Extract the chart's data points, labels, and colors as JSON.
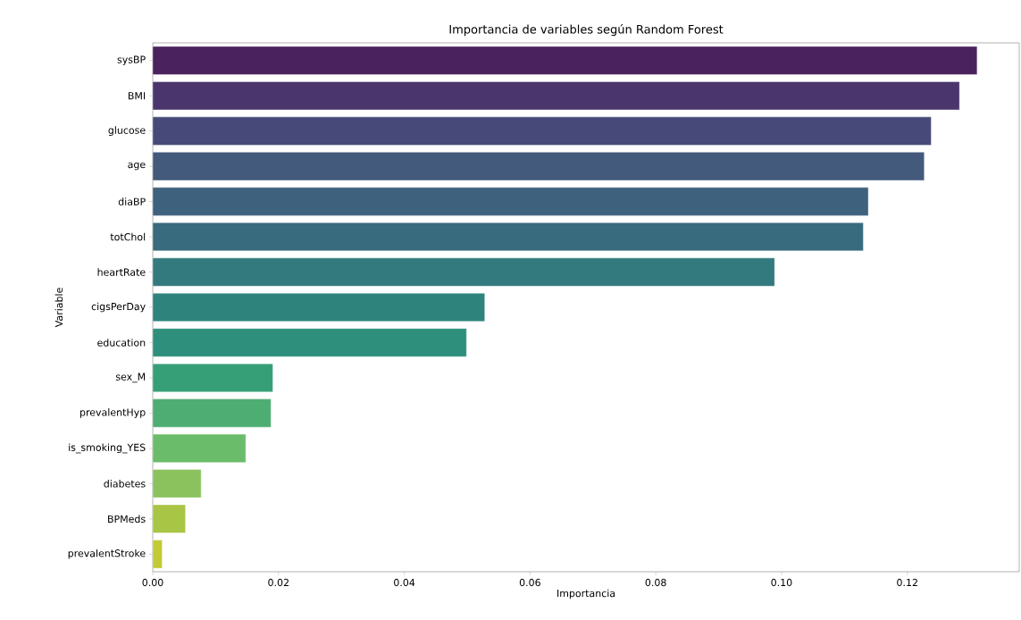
{
  "chart_data": {
    "type": "bar",
    "orientation": "horizontal",
    "title": "Importancia de variables según Random Forest",
    "xlabel": "Importancia",
    "ylabel": "Variable",
    "categories": [
      "sysBP",
      "BMI",
      "glucose",
      "age",
      "diaBP",
      "totChol",
      "heartRate",
      "cigsPerDay",
      "education",
      "sex_M",
      "prevalentHyp",
      "is_smoking_YES",
      "diabetes",
      "BPMeds",
      "prevalentStroke"
    ],
    "values": [
      0.1311,
      0.1283,
      0.1238,
      0.1227,
      0.1138,
      0.113,
      0.0989,
      0.0528,
      0.0499,
      0.0191,
      0.0188,
      0.0148,
      0.0077,
      0.0052,
      0.0015
    ],
    "colors": [
      "#4a225e",
      "#4a366d",
      "#474a78",
      "#435a7c",
      "#3e617e",
      "#386b7d",
      "#327a7e",
      "#2e837d",
      "#2e907c",
      "#379f78",
      "#4dad73",
      "#6bbc6a",
      "#8cc25e",
      "#a8c545",
      "#c2cb35"
    ],
    "xlim": [
      0,
      0.1378
    ],
    "xticks": [
      {
        "value": 0,
        "label": "0.00"
      },
      {
        "value": 0.02,
        "label": "0.02"
      },
      {
        "value": 0.04,
        "label": "0.04"
      },
      {
        "value": 0.06,
        "label": "0.06"
      },
      {
        "value": 0.08,
        "label": "0.08"
      },
      {
        "value": 0.1,
        "label": "0.10"
      },
      {
        "value": 0.12,
        "label": "0.12"
      }
    ],
    "marker": "none"
  }
}
